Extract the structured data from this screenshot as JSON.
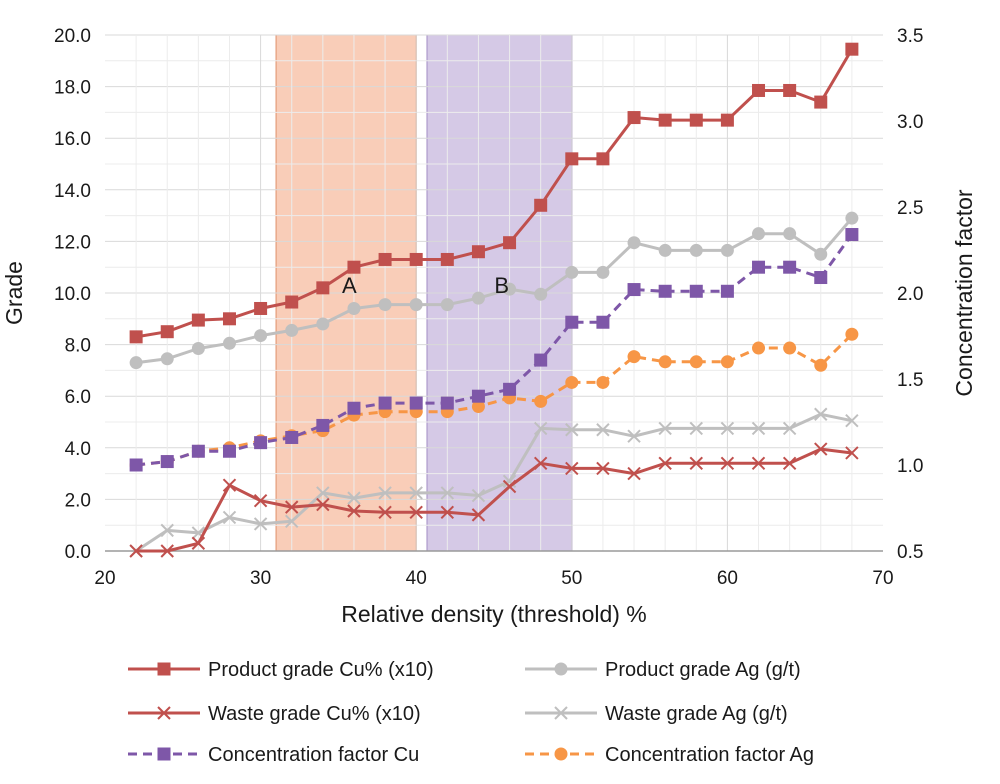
{
  "chart_data": {
    "type": "line",
    "xlabel": "Relative density (threshold) %",
    "ylabel": "Grade",
    "y2label": "Concentration factor",
    "xlim": [
      20,
      70
    ],
    "ylim": [
      0,
      20
    ],
    "y2lim": [
      0.5,
      3.5
    ],
    "xticks": [
      20,
      30,
      40,
      50,
      60,
      70
    ],
    "yticks": [
      "0.0",
      "2.0",
      "4.0",
      "6.0",
      "8.0",
      "10.0",
      "12.0",
      "14.0",
      "16.0",
      "18.0",
      "20.0"
    ],
    "y2ticks": [
      "0.5",
      "1.0",
      "1.5",
      "2.0",
      "2.5",
      "3.0",
      "3.5"
    ],
    "grid": true,
    "x": [
      22,
      24,
      26,
      28,
      30,
      32,
      34,
      36,
      38,
      40,
      42,
      44,
      46,
      48,
      50,
      52,
      54,
      56,
      58,
      60,
      62,
      64,
      66,
      68
    ],
    "regions": [
      {
        "label": "A",
        "x_start": 31,
        "x_end": 40,
        "color": "#f9cdb8"
      },
      {
        "label": "B",
        "x_start": 40.7,
        "x_end": 50,
        "color": "#d5c9e6"
      }
    ],
    "series": [
      {
        "name": "Product grade Cu% (x10)",
        "axis": "left",
        "color": "#c0504d",
        "marker": "square",
        "dash": false,
        "values": [
          8.3,
          8.5,
          8.95,
          9.0,
          9.4,
          9.65,
          10.2,
          11.0,
          11.3,
          11.3,
          11.3,
          11.6,
          11.95,
          13.4,
          15.2,
          15.2,
          16.8,
          16.7,
          16.7,
          16.7,
          17.85,
          17.85,
          17.4,
          19.45
        ]
      },
      {
        "name": "Product grade Ag (g/t)",
        "axis": "left",
        "color": "#bfbfbf",
        "marker": "circle",
        "dash": false,
        "values": [
          7.3,
          7.45,
          7.85,
          8.05,
          8.35,
          8.55,
          8.8,
          9.4,
          9.55,
          9.55,
          9.55,
          9.8,
          10.15,
          9.95,
          10.8,
          10.8,
          11.95,
          11.65,
          11.65,
          11.65,
          12.3,
          12.3,
          11.5,
          12.9
        ]
      },
      {
        "name": "Waste grade Cu% (x10)",
        "axis": "left",
        "color": "#c0504d",
        "marker": "x",
        "dash": false,
        "values": [
          0.0,
          0.0,
          0.3,
          2.55,
          1.95,
          1.7,
          1.8,
          1.55,
          1.5,
          1.5,
          1.5,
          1.4,
          2.5,
          3.4,
          3.2,
          3.2,
          3.0,
          3.4,
          3.4,
          3.4,
          3.4,
          3.4,
          3.95,
          3.8
        ]
      },
      {
        "name": "Waste grade Ag (g/t)",
        "axis": "left",
        "color": "#bfbfbf",
        "marker": "x",
        "dash": false,
        "values": [
          0.0,
          0.8,
          0.7,
          1.3,
          1.05,
          1.15,
          2.25,
          2.05,
          2.25,
          2.25,
          2.25,
          2.15,
          2.7,
          4.75,
          4.7,
          4.7,
          4.45,
          4.75,
          4.75,
          4.75,
          4.75,
          4.75,
          5.3,
          5.05
        ]
      },
      {
        "name": "Concentration factor Cu",
        "axis": "right",
        "color": "#7e57a8",
        "marker": "square",
        "dash": true,
        "values": [
          1.0,
          1.02,
          1.08,
          1.08,
          1.13,
          1.16,
          1.23,
          1.33,
          1.36,
          1.36,
          1.36,
          1.4,
          1.44,
          1.61,
          1.83,
          1.83,
          2.02,
          2.01,
          2.01,
          2.01,
          2.15,
          2.15,
          2.09,
          2.34
        ]
      },
      {
        "name": "Concentration factor Ag",
        "axis": "right",
        "color": "#f79646",
        "marker": "circle",
        "dash": true,
        "values": [
          1.0,
          1.02,
          1.08,
          1.1,
          1.14,
          1.17,
          1.2,
          1.29,
          1.31,
          1.31,
          1.31,
          1.34,
          1.39,
          1.37,
          1.48,
          1.48,
          1.63,
          1.6,
          1.6,
          1.6,
          1.68,
          1.68,
          1.58,
          1.76
        ]
      }
    ]
  }
}
